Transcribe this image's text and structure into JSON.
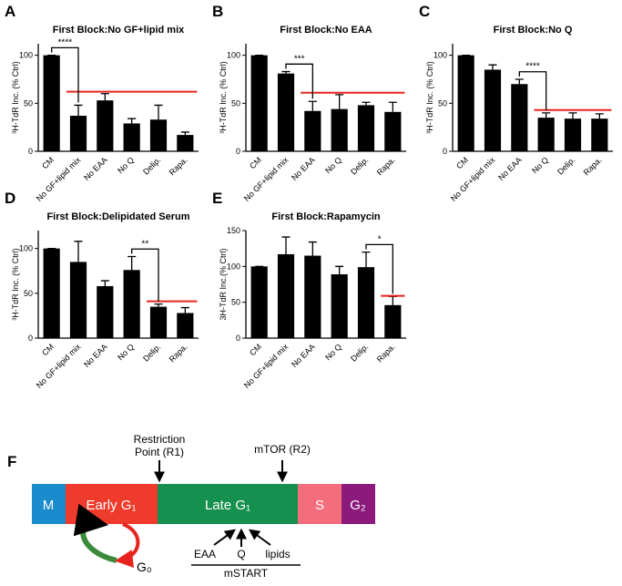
{
  "chart_data": [
    {
      "type": "bar",
      "panel": "A",
      "title": "First Block:No GF+lipid mix",
      "y_label": "³H-TdR Inc. (% Ctrl)",
      "categories": [
        "CM",
        "No GF+lipid mix",
        "No EAA",
        "No Q",
        "Delip.",
        "Rapa."
      ],
      "values": [
        100,
        37,
        53,
        29,
        33,
        17
      ],
      "errors": [
        0,
        11,
        7,
        5,
        15,
        3
      ],
      "color": "#000000",
      "ylim": [
        0,
        112
      ],
      "yticks": [
        0,
        50,
        100
      ],
      "reference_line": {
        "value": 62,
        "color": "#e8231e"
      },
      "significance": {
        "label": "****",
        "from": 0,
        "to": 1
      }
    },
    {
      "type": "bar",
      "panel": "B",
      "title": "First Block:No EAA",
      "y_label": "³H-TdR Inc. (% Ctrl)",
      "categories": [
        "CM",
        "No GF+lipid mix",
        "No EAA",
        "No Q",
        "Delip.",
        "Rapa."
      ],
      "values": [
        100,
        81,
        42,
        44,
        48,
        41
      ],
      "errors": [
        0,
        2,
        10,
        15,
        3,
        10
      ],
      "color": "#000000",
      "ylim": [
        0,
        112
      ],
      "yticks": [
        0,
        50,
        100
      ],
      "reference_line": {
        "value": 61,
        "color": "#e8231e"
      },
      "significance": {
        "label": "***",
        "from": 1,
        "to": 2
      }
    },
    {
      "type": "bar",
      "panel": "C",
      "title": "First Block:No Q",
      "y_label": "³H-TdR Inc. (% Ctrl)",
      "categories": [
        "CM",
        "No GF+lipid mix",
        "No EAA",
        "No Q",
        "Delip.",
        "Rapa."
      ],
      "values": [
        100,
        85,
        70,
        35,
        34,
        34
      ],
      "errors": [
        0,
        5,
        5,
        5,
        6,
        5
      ],
      "color": "#000000",
      "ylim": [
        0,
        112
      ],
      "yticks": [
        0,
        50,
        100
      ],
      "reference_line": {
        "value": 43,
        "color": "#e8231e"
      },
      "significance": {
        "label": "****",
        "from": 2,
        "to": 3
      }
    },
    {
      "type": "bar",
      "panel": "D",
      "title": "First Block:Delipidated Serum",
      "y_label": "³H-TdR Inc. (% Ctrl)",
      "categories": [
        "CM",
        "No GF+lipid mix",
        "No EAA",
        "No Q",
        "Delip.",
        "Rapa."
      ],
      "values": [
        100,
        85,
        58,
        76,
        35,
        28
      ],
      "errors": [
        0,
        23,
        6,
        15,
        3,
        6
      ],
      "color": "#000000",
      "ylim": [
        0,
        120
      ],
      "yticks": [
        0,
        50,
        100
      ],
      "reference_line": {
        "value": 41,
        "color": "#e8231e"
      },
      "significance": {
        "label": "**",
        "from": 3,
        "to": 4
      }
    },
    {
      "type": "bar",
      "panel": "E",
      "title": "First Block:Rapamycin",
      "y_label": "3H-TdR Inc.(% Ctrl)",
      "categories": [
        "CM",
        "No GF+lipid mix",
        "No EAA",
        "No Q",
        "Delip.",
        "Rapa."
      ],
      "values": [
        100,
        117,
        115,
        89,
        99,
        46
      ],
      "errors": [
        0,
        24,
        19,
        11,
        21,
        12
      ],
      "color": "#000000",
      "ylim": [
        0,
        150
      ],
      "yticks": [
        0,
        50,
        100,
        150
      ],
      "reference_line": {
        "value": 59,
        "color": "#e8231e"
      },
      "significance": {
        "label": "*",
        "from": 4,
        "to": 5
      }
    }
  ],
  "diagram": {
    "panel": "F",
    "r1": "Restriction Point (R1)",
    "r2": "mTOR (R2)",
    "phases": [
      "M",
      "Early G₁",
      "Late G₁",
      "S",
      "G₂"
    ],
    "g0": "G₀",
    "inputs": [
      "EAA",
      "Q",
      "lipids"
    ],
    "footer": "mSTART"
  }
}
